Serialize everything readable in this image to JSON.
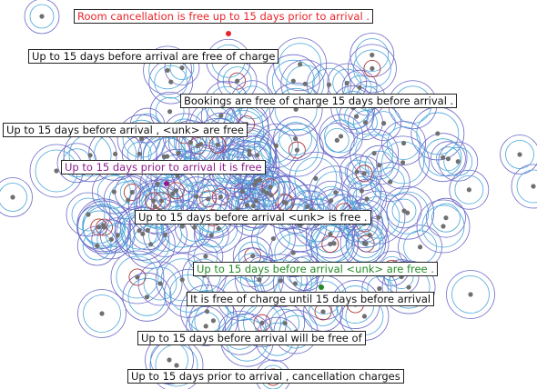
{
  "colors": {
    "background": "#ffffff",
    "outer_contour": "#6a6ac8",
    "mid_contour": "#4aa6d8",
    "inner_contour": "#b03a3a",
    "point": "#707070",
    "label_border": "#222222"
  },
  "labels": [
    {
      "text": "Room cancellation is free up to 15 days prior to arrival .",
      "color": "#e8242a"
    },
    {
      "text": "Up to 15 days before arrival are free of charge",
      "color": "#111111"
    },
    {
      "text": "Bookings are free of charge 15 days before arrival .",
      "color": "#111111"
    },
    {
      "text": "Up to 15 days before arrival , <unk> are free",
      "color": "#111111"
    },
    {
      "text": "Up to 15 days prior to arrival it is free",
      "color": "#8b1c8b"
    },
    {
      "text": "Up to 15 days before arrival <unk> is free .",
      "color": "#111111"
    },
    {
      "text": "Up to 15 days before arrival <unk> are free .",
      "color": "#228b22"
    },
    {
      "text": "It is free of charge until 15 days before arrival",
      "color": "#111111"
    },
    {
      "text": "Up to 15 days before arrival will be free of",
      "color": "#111111"
    },
    {
      "text": "Up to 15 days prior to arrival , cancellation charges",
      "color": "#111111"
    }
  ]
}
